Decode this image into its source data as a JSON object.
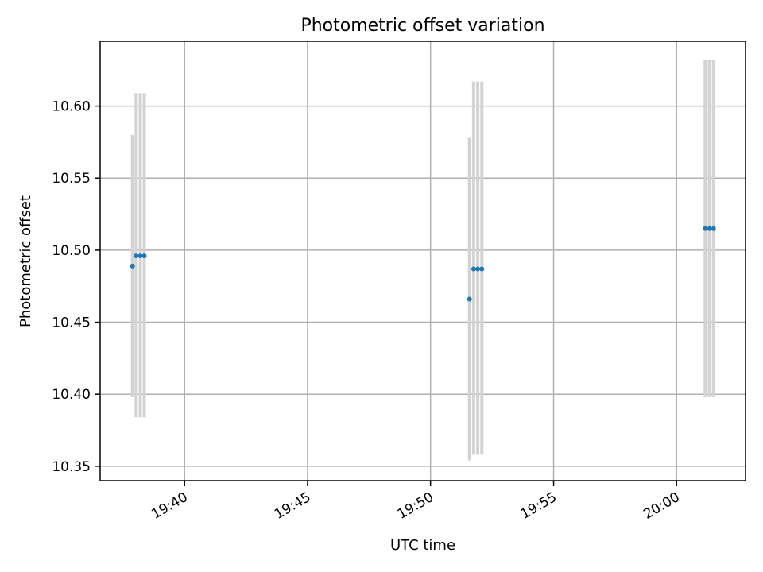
{
  "chart_data": {
    "type": "scatter",
    "title": "Photometric offset variation",
    "xlabel": "UTC time",
    "ylabel": "Photometric offset",
    "x_ticks": [
      "19:40",
      "19:45",
      "19:50",
      "19:55",
      "20:00"
    ],
    "x_tick_values": [
      19.6667,
      19.75,
      19.8333,
      19.9167,
      20.0
    ],
    "y_ticks": [
      "10.35",
      "10.40",
      "10.45",
      "10.50",
      "10.55",
      "10.60"
    ],
    "y_tick_values": [
      10.35,
      10.4,
      10.45,
      10.5,
      10.55,
      10.6
    ],
    "xlim": [
      19.6095,
      20.0467
    ],
    "ylim": [
      10.34,
      10.645
    ],
    "grid": true,
    "point_color": "#1f77b4",
    "errorbar_color": "#d3d3d3",
    "points": [
      {
        "time": "19:37:53",
        "x": 19.6314,
        "y": 10.489,
        "err_low": 10.398,
        "err_high": 10.58
      },
      {
        "time": "19:38:02",
        "x": 19.6339,
        "y": 10.496,
        "err_low": 10.384,
        "err_high": 10.609
      },
      {
        "time": "19:38:12",
        "x": 19.6367,
        "y": 10.496,
        "err_low": 10.384,
        "err_high": 10.609
      },
      {
        "time": "19:38:22",
        "x": 19.6394,
        "y": 10.496,
        "err_low": 10.384,
        "err_high": 10.609
      },
      {
        "time": "19:51:35",
        "x": 19.8597,
        "y": 10.466,
        "err_low": 10.354,
        "err_high": 10.578
      },
      {
        "time": "19:51:45",
        "x": 19.8625,
        "y": 10.487,
        "err_low": 10.358,
        "err_high": 10.617
      },
      {
        "time": "19:51:55",
        "x": 19.8653,
        "y": 10.487,
        "err_low": 10.358,
        "err_high": 10.617
      },
      {
        "time": "19:52:05",
        "x": 19.8681,
        "y": 10.487,
        "err_low": 10.358,
        "err_high": 10.617
      },
      {
        "time": "20:01:10",
        "x": 20.0194,
        "y": 10.515,
        "err_low": 10.398,
        "err_high": 10.632
      },
      {
        "time": "20:01:20",
        "x": 20.0222,
        "y": 10.515,
        "err_low": 10.398,
        "err_high": 10.632
      },
      {
        "time": "20:01:30",
        "x": 20.025,
        "y": 10.515,
        "err_low": 10.398,
        "err_high": 10.632
      }
    ]
  }
}
